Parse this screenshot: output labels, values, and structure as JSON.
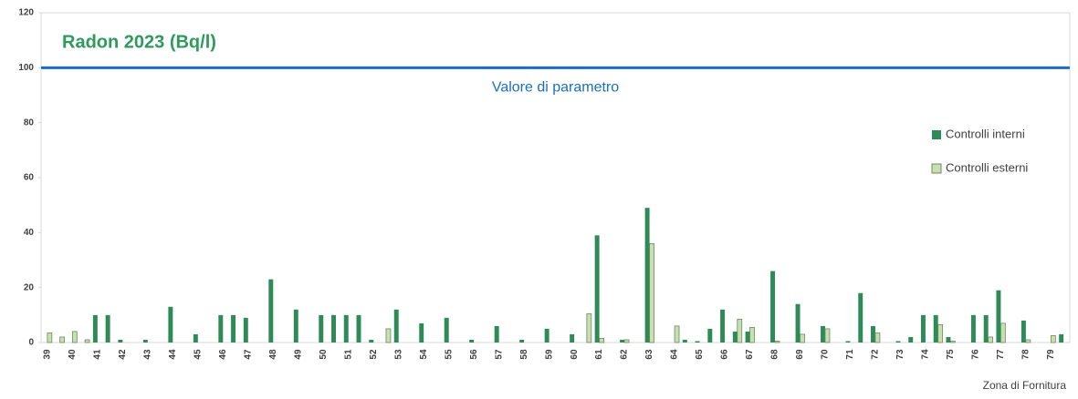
{
  "chart_data": {
    "type": "bar",
    "title": "Radon 2023 (Bq/l)",
    "x_label": "Zona di Fornitura",
    "categories": [
      "39",
      null,
      "40",
      null,
      "41",
      null,
      "42",
      null,
      "43",
      null,
      "44",
      null,
      "45",
      null,
      "46",
      null,
      "47",
      null,
      "48",
      null,
      "49",
      null,
      "50",
      null,
      "51",
      null,
      "52",
      null,
      "53",
      null,
      "54",
      null,
      "55",
      null,
      "56",
      null,
      "57",
      null,
      "58",
      null,
      "59",
      null,
      "60",
      null,
      "61",
      null,
      "62",
      null,
      "63",
      null,
      "64",
      null,
      "65",
      null,
      "66",
      null,
      "67",
      null,
      "68",
      null,
      "69",
      null,
      "70",
      null,
      "71",
      null,
      "72",
      null,
      "73",
      null,
      "74",
      null,
      "75",
      null,
      "76",
      null,
      "77",
      null,
      "78",
      null,
      "79",
      null
    ],
    "series": [
      {
        "name": "Controlli interni",
        "color": "#2e8b57",
        "values": [
          0,
          0,
          0,
          0,
          10,
          10,
          1,
          0,
          1,
          0,
          13,
          0,
          3,
          0,
          10,
          10,
          9,
          0,
          23,
          0,
          12,
          0,
          10,
          10,
          10,
          10,
          1,
          0,
          12,
          0,
          7,
          0,
          9,
          0,
          1,
          0,
          6,
          0,
          1,
          0,
          5,
          0,
          3,
          0,
          39,
          0,
          1,
          0,
          49,
          0,
          0,
          1,
          0.5,
          5,
          12,
          4,
          4,
          0,
          26,
          0,
          14,
          0,
          6,
          0,
          0.5,
          18,
          6,
          0,
          0.5,
          2,
          10,
          10,
          2,
          0,
          10,
          10,
          19,
          0,
          8,
          0,
          0,
          3
        ]
      },
      {
        "name": "Controlli esterni",
        "color": "#c6e0b4",
        "values": [
          3.5,
          2,
          4,
          1,
          0,
          0,
          0,
          0,
          0,
          0,
          0,
          0,
          0,
          0,
          0,
          0,
          0,
          0,
          0,
          0,
          0,
          0,
          0,
          0,
          0,
          0,
          0,
          5,
          0,
          0,
          0,
          0,
          0,
          0,
          0,
          0,
          0,
          0,
          0,
          0,
          0,
          0,
          0,
          10.5,
          1.5,
          0,
          1,
          0,
          36,
          0,
          6,
          0,
          0,
          0,
          0,
          8.5,
          5.5,
          0,
          0.5,
          0,
          3,
          0,
          5,
          0,
          0,
          0,
          3.5,
          0,
          0,
          0,
          0,
          6.5,
          0.5,
          0,
          0,
          2,
          7,
          0,
          1,
          0,
          2.5,
          0
        ]
      }
    ],
    "reference_line": {
      "value": 100,
      "label": "Valore di parametro",
      "color": "#1a6fbd"
    },
    "ylim": [
      0,
      120
    ],
    "yticks": [
      0,
      20,
      40,
      60,
      80,
      100,
      120
    ],
    "legend": "right"
  }
}
